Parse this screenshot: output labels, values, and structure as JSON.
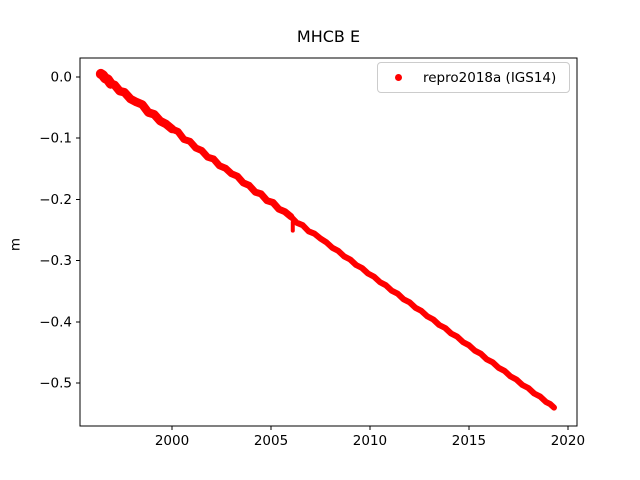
{
  "chart_data": {
    "type": "scatter",
    "title": "MHCB E",
    "xlabel": "",
    "ylabel": "m",
    "grid": false,
    "background": "#ffffff",
    "xlim": [
      1995.35,
      2020.46
    ],
    "ylim": [
      -0.57,
      0.031
    ],
    "xticks": [
      2000,
      2005,
      2010,
      2015,
      2020
    ],
    "xtick_labels": [
      "2000",
      "2005",
      "2010",
      "2015",
      "2020"
    ],
    "yticks": [
      0.0,
      -0.1,
      -0.2,
      -0.3,
      -0.4,
      -0.5
    ],
    "ytick_labels": [
      "0.0",
      "−0.1",
      "−0.2",
      "−0.3",
      "−0.4",
      "−0.5"
    ],
    "legend": {
      "label": "repro2018a (IGS14)",
      "position": "upper right",
      "marker": "red-dot"
    },
    "series": [
      {
        "name": "repro2018a (IGS14)",
        "color": "#ff0000",
        "marker": "dot",
        "points": [
          [
            1996.4,
            0.005
          ],
          [
            1996.5,
            0.003
          ],
          [
            1996.62,
            -0.002
          ],
          [
            1996.75,
            -0.004
          ],
          [
            1996.9,
            -0.011
          ],
          [
            1997.1,
            -0.013
          ],
          [
            1997.35,
            -0.023
          ],
          [
            1997.6,
            -0.025
          ],
          [
            1997.9,
            -0.036
          ],
          [
            1998.2,
            -0.041
          ],
          [
            1998.5,
            -0.045
          ],
          [
            1998.8,
            -0.058
          ],
          [
            1999.1,
            -0.061
          ],
          [
            1999.4,
            -0.072
          ],
          [
            1999.7,
            -0.077
          ],
          [
            2000.0,
            -0.085
          ],
          [
            2000.3,
            -0.089
          ],
          [
            2000.6,
            -0.102
          ],
          [
            2000.9,
            -0.105
          ],
          [
            2001.2,
            -0.116
          ],
          [
            2001.5,
            -0.12
          ],
          [
            2001.8,
            -0.131
          ],
          [
            2002.1,
            -0.134
          ],
          [
            2002.4,
            -0.145
          ],
          [
            2002.7,
            -0.149
          ],
          [
            2003.0,
            -0.158
          ],
          [
            2003.3,
            -0.162
          ],
          [
            2003.6,
            -0.173
          ],
          [
            2003.9,
            -0.177
          ],
          [
            2004.2,
            -0.188
          ],
          [
            2004.5,
            -0.191
          ],
          [
            2004.8,
            -0.202
          ],
          [
            2005.1,
            -0.205
          ],
          [
            2005.4,
            -0.216
          ],
          [
            2005.7,
            -0.22
          ],
          [
            2006.0,
            -0.228
          ],
          [
            2006.3,
            -0.238
          ],
          [
            2006.6,
            -0.242
          ],
          [
            2006.9,
            -0.252
          ],
          [
            2007.2,
            -0.256
          ],
          [
            2007.5,
            -0.264
          ],
          [
            2007.8,
            -0.27
          ],
          [
            2008.1,
            -0.279
          ],
          [
            2008.4,
            -0.284
          ],
          [
            2008.7,
            -0.293
          ],
          [
            2009.0,
            -0.298
          ],
          [
            2009.3,
            -0.307
          ],
          [
            2009.6,
            -0.312
          ],
          [
            2009.9,
            -0.321
          ],
          [
            2010.2,
            -0.326
          ],
          [
            2010.5,
            -0.335
          ],
          [
            2010.8,
            -0.34
          ],
          [
            2011.1,
            -0.349
          ],
          [
            2011.4,
            -0.354
          ],
          [
            2011.7,
            -0.363
          ],
          [
            2012.0,
            -0.368
          ],
          [
            2012.3,
            -0.377
          ],
          [
            2012.6,
            -0.382
          ],
          [
            2012.9,
            -0.391
          ],
          [
            2013.2,
            -0.396
          ],
          [
            2013.5,
            -0.405
          ],
          [
            2013.8,
            -0.41
          ],
          [
            2014.1,
            -0.419
          ],
          [
            2014.4,
            -0.424
          ],
          [
            2014.7,
            -0.433
          ],
          [
            2015.0,
            -0.438
          ],
          [
            2015.3,
            -0.447
          ],
          [
            2015.6,
            -0.452
          ],
          [
            2015.9,
            -0.461
          ],
          [
            2016.2,
            -0.466
          ],
          [
            2016.5,
            -0.475
          ],
          [
            2016.8,
            -0.48
          ],
          [
            2017.1,
            -0.489
          ],
          [
            2017.4,
            -0.494
          ],
          [
            2017.7,
            -0.503
          ],
          [
            2018.0,
            -0.508
          ],
          [
            2018.3,
            -0.517
          ],
          [
            2018.6,
            -0.522
          ],
          [
            2018.9,
            -0.531
          ],
          [
            2019.1,
            -0.534
          ],
          [
            2019.3,
            -0.54
          ]
        ],
        "outliers": [
          {
            "x": 2006.1,
            "from": -0.237,
            "to": -0.251
          }
        ]
      }
    ]
  }
}
